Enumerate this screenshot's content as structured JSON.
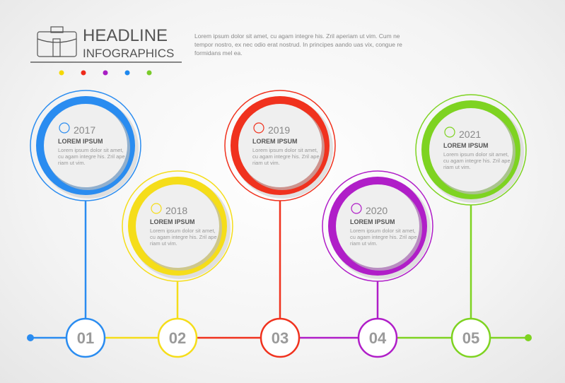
{
  "header": {
    "title_line1": "HEADLINE",
    "title_line2": "INFOGRAPHICS",
    "intro_text": "Lorem ipsum dolor sit amet, cu agam integre his. Zril aperiam ut vim. Cum ne tempor nostro, ex nec odio erat nostrud. In principes aando uas vix, congue re formidans mel ea.",
    "icon": "briefcase-icon",
    "dot_colors": [
      "#f5d800",
      "#ee2a1a",
      "#a81ec4",
      "#1e88ee",
      "#7acb2a"
    ]
  },
  "steps": [
    {
      "number": "01",
      "year": "2017",
      "heading": "LOREM IPSUM",
      "line1": "Lorem ipsum dolor sit amet,",
      "line2": "cu agam integre his. Zril ape",
      "line3": "riam ut vim.",
      "color": "#2a8cf0",
      "icon": "gear-icon"
    },
    {
      "number": "02",
      "year": "2018",
      "heading": "LOREM IPSUM",
      "line1": "Lorem ipsum dolor sit amet,",
      "line2": "cu agam integre his. Zril ape",
      "line3": "riam ut vim.",
      "color": "#f5dd1a",
      "icon": "lightbulb-icon"
    },
    {
      "number": "03",
      "year": "2019",
      "heading": "LOREM IPSUM",
      "line1": "Lorem ipsum dolor sit amet,",
      "line2": "cu agam integre his. Zril ape",
      "line3": "riam ut vim.",
      "color": "#f0321e",
      "icon": "chart-icon"
    },
    {
      "number": "04",
      "year": "2020",
      "heading": "LOREM IPSUM",
      "line1": "Lorem ipsum dolor sit amet,",
      "line2": "cu agam integre his. Zril ape",
      "line3": "riam ut vim.",
      "color": "#b01ec8",
      "icon": "handshake-icon"
    },
    {
      "number": "05",
      "year": "2021",
      "heading": "LOREM IPSUM",
      "line1": "Lorem ipsum dolor sit amet,",
      "line2": "cu agam integre his. Zril ape",
      "line3": "riam ut vim.",
      "color": "#7ed321",
      "icon": "info-icon"
    }
  ]
}
